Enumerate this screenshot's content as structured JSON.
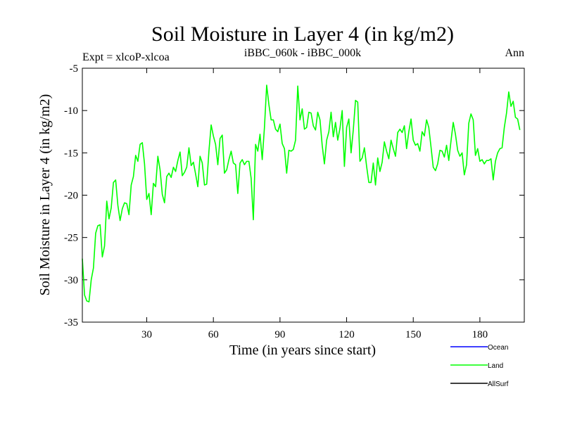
{
  "chart_data": {
    "type": "line",
    "title": "Soil Moisture in Layer 4 (in kg/m2)",
    "subtitle_left": "Expt = xlcoP-xlcoa",
    "subtitle_center": "iBBC_060k - iBBC_000k",
    "subtitle_right": "Ann",
    "xlabel": "Time (in years since start)",
    "ylabel": "Soil Moisture in Layer 4 (in kg/m2)",
    "xlim": [
      1,
      200
    ],
    "ylim": [
      -35,
      -5
    ],
    "x_ticks": [
      30,
      60,
      90,
      120,
      150,
      180
    ],
    "x_tick_labels": [
      "30",
      "60",
      "90",
      "120",
      "150",
      "180"
    ],
    "y_ticks": [
      -35,
      -30,
      -25,
      -20,
      -15,
      -10,
      -5
    ],
    "y_tick_labels": [
      "-35",
      "-30",
      "-25",
      "-20",
      "-15",
      "-10",
      "-5"
    ],
    "legend": [
      {
        "name": "Ocean",
        "color": "#0000ff"
      },
      {
        "name": "Land",
        "color": "#00ff00"
      },
      {
        "name": "AllSurf",
        "color": "#000000"
      }
    ],
    "series": [
      {
        "name": "Land",
        "color": "#00ff00",
        "x_start": 1,
        "x_step": 1,
        "values": [
          -27.5,
          -31.8,
          -32.5,
          -32.6,
          -30.0,
          -28.6,
          -24.5,
          -23.6,
          -23.5,
          -27.3,
          -26.0,
          -20.7,
          -22.8,
          -21.5,
          -18.5,
          -18.2,
          -21.2,
          -23.0,
          -21.6,
          -20.9,
          -21.0,
          -22.3,
          -18.8,
          -17.8,
          -15.3,
          -16.0,
          -14.0,
          -13.8,
          -16.3,
          -20.5,
          -19.8,
          -22.3,
          -18.6,
          -19.0,
          -15.4,
          -17.0,
          -19.9,
          -20.9,
          -17.8,
          -17.4,
          -17.9,
          -16.7,
          -17.2,
          -15.9,
          -14.9,
          -17.7,
          -17.3,
          -16.7,
          -14.4,
          -16.5,
          -16.1,
          -17.5,
          -19.0,
          -15.4,
          -16.2,
          -18.8,
          -18.7,
          -14.8,
          -11.7,
          -13.0,
          -14.0,
          -16.4,
          -13.3,
          -12.9,
          -17.4,
          -17.0,
          -15.8,
          -14.8,
          -16.2,
          -16.4,
          -19.8,
          -16.2,
          -15.8,
          -16.4,
          -16.0,
          -16.0,
          -18.0,
          -22.9,
          -14.0,
          -14.8,
          -12.8,
          -15.8,
          -12.0,
          -7.0,
          -9.3,
          -11.1,
          -11.1,
          -12.2,
          -12.5,
          -11.6,
          -13.9,
          -14.5,
          -17.4,
          -14.7,
          -14.8,
          -14.6,
          -13.5,
          -7.1,
          -11.1,
          -9.8,
          -12.2,
          -12.0,
          -10.2,
          -10.3,
          -11.8,
          -12.3,
          -10.2,
          -11.1,
          -14.1,
          -16.3,
          -13.5,
          -12.5,
          -10.2,
          -13.1,
          -11.4,
          -13.5,
          -12.1,
          -10.0,
          -16.6,
          -12.0,
          -11.0,
          -15.0,
          -12.3,
          -8.8,
          -9.0,
          -16.0,
          -15.6,
          -14.4,
          -16.6,
          -18.5,
          -18.5,
          -16.2,
          -18.8,
          -15.6,
          -17.2,
          -16.1,
          -13.7,
          -14.8,
          -15.7,
          -13.5,
          -14.5,
          -15.4,
          -12.6,
          -12.2,
          -12.6,
          -11.8,
          -14.5,
          -12.5,
          -11.0,
          -13.5,
          -14.1,
          -13.9,
          -14.8,
          -12.5,
          -13.0,
          -11.1,
          -12.0,
          -14.3,
          -16.7,
          -17.1,
          -16.3,
          -14.7,
          -14.8,
          -15.5,
          -14.1,
          -15.9,
          -13.6,
          -11.4,
          -12.8,
          -14.7,
          -15.4,
          -15.0,
          -17.6,
          -16.4,
          -11.5,
          -10.4,
          -11.1,
          -15.3,
          -14.5,
          -16.0,
          -15.8,
          -16.3,
          -15.9,
          -15.9,
          -15.7,
          -18.2,
          -16.0,
          -15.0,
          -14.5,
          -14.4,
          -12.0,
          -10.3,
          -7.8,
          -9.5,
          -8.9,
          -10.8,
          -11.0,
          -12.3
        ]
      }
    ]
  }
}
